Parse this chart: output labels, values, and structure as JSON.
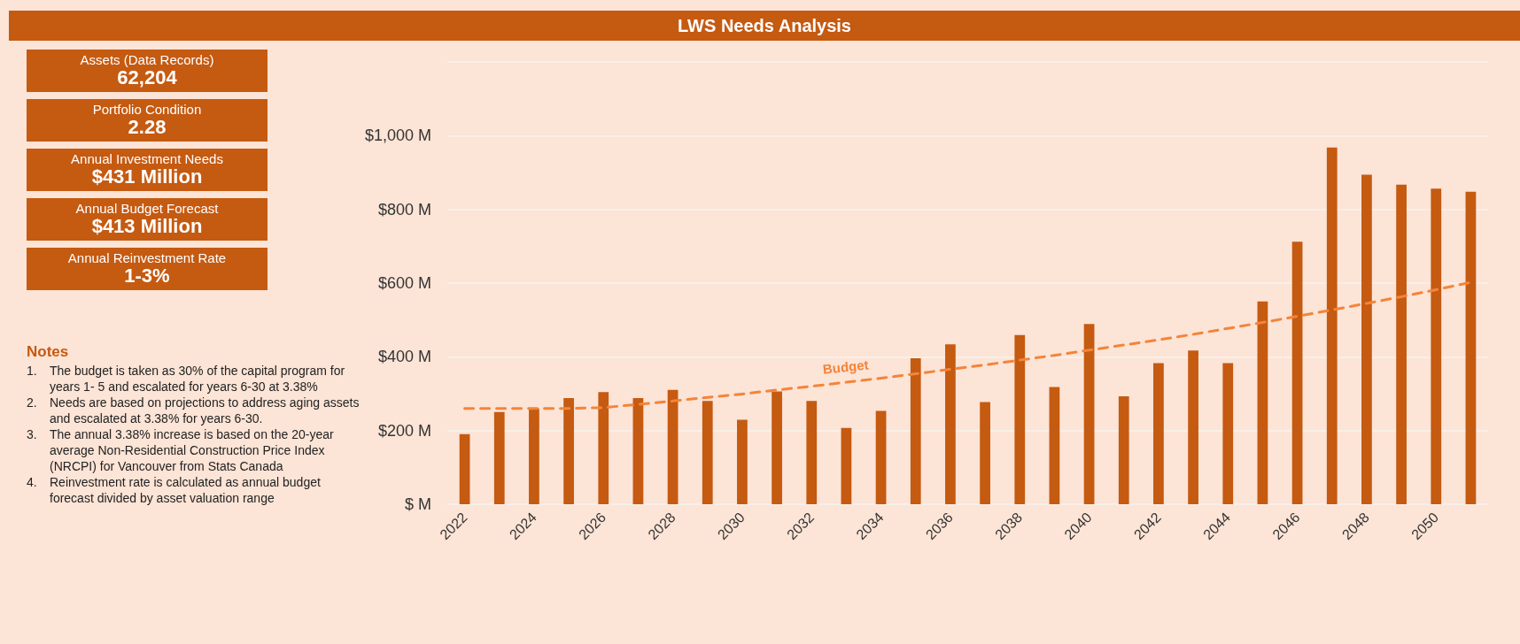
{
  "chart_data": [
    {
      "type": "other",
      "annotations": [
        "Assets (Data Records)",
        "62,204",
        "Portfolio Condition",
        "2.28",
        "Annual Investment Needs",
        "$431 Million",
        "Annual Budget Forecast",
        "$413 Million",
        "Annual Reinvestment Rate",
        "1-3%"
      ]
    },
    {
      "type": "bar",
      "title": "LWS Needs Analysis",
      "categories": [
        "2022",
        null,
        "2024",
        null,
        "2026",
        null,
        "2028",
        null,
        "2030",
        null,
        "2032",
        null,
        "2034",
        null,
        "2036",
        null,
        "2038",
        null,
        "2040",
        null,
        "2042",
        null,
        "2044",
        null,
        "2046",
        null,
        "2048",
        null,
        "2050",
        null
      ],
      "series": [
        {
          "color": "#c55a11",
          "values": [
            190,
            250,
            260,
            288,
            304,
            288,
            310,
            280,
            229,
            306,
            280,
            207,
            253,
            396,
            434,
            277,
            459,
            318,
            489,
            293,
            383,
            417,
            383,
            550,
            712,
            968,
            894,
            867,
            856,
            848
          ]
        },
        {
          "type": "line",
          "name": "Budget",
          "color": "#f4843a",
          "line_style": "dashed",
          "marker": "none",
          "values": [
            260,
            260,
            260,
            260,
            262,
            271,
            280,
            290,
            299,
            310,
            320,
            331,
            342,
            354,
            366,
            378,
            391,
            404,
            418,
            432,
            446,
            461,
            477,
            493,
            510,
            527,
            545,
            563,
            582,
            602
          ]
        }
      ],
      "ylim": [
        0,
        1200
      ],
      "yticks": [
        {
          "value": 0,
          "label": "$ M"
        },
        {
          "value": 200,
          "label": "$200 M"
        },
        {
          "value": 400,
          "label": "$400 M"
        },
        {
          "value": 600,
          "label": "$600 M"
        },
        {
          "value": 800,
          "label": "$800 M"
        },
        {
          "value": 1000,
          "label": "$1,000 M"
        },
        {
          "value": 1200,
          "label": null
        }
      ],
      "grid": "y",
      "legend": false,
      "annotations": [
        "Notes",
        "1.\tThe budget is taken as 30% of the capital program for years 1- 5 and escalated for years 6-30 at 3.38%",
        "2.\tNeeds are based on projections to address aging assets and escalated at 3.38% for years 6-30.",
        "3.\tThe annual 3.38% increase is based on the 20-year average Non-Residential Construction Price Index (NRCPI) for Vancouver from Stats Canada",
        "4.\tReinvestment rate is calculated as annual budget forecast divided by asset valuation range"
      ]
    }
  ]
}
